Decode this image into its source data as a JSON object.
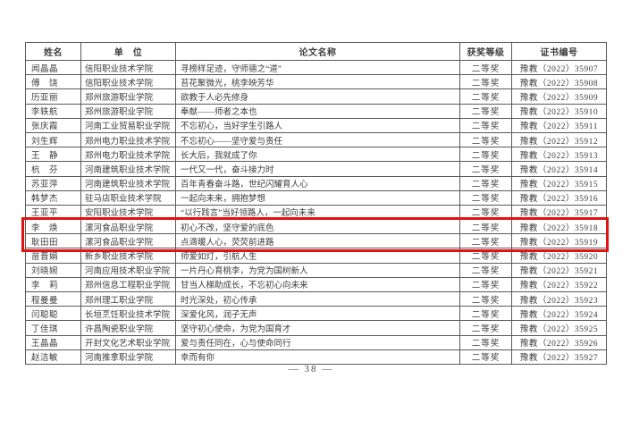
{
  "page": {
    "footer_page_number": "— 38 —"
  },
  "colors": {
    "highlight_border": "#e01212",
    "text": "#3d3d3d",
    "table_border": "#5a5a5a",
    "background": "#ffffff"
  },
  "table": {
    "columns": [
      {
        "key": "name",
        "label": "姓名"
      },
      {
        "key": "unit",
        "label": "单　位"
      },
      {
        "key": "title",
        "label": "论文名称"
      },
      {
        "key": "award",
        "label": "获奖等级"
      },
      {
        "key": "cert",
        "label": "证书编号"
      }
    ],
    "rows": [
      {
        "name": "闻晶晶",
        "unit": "信阳职业技术学院",
        "title": "寻榜样足迹，守师德之“道”",
        "award": "二等奖",
        "cert": "豫教（2022）35907",
        "highlighted": false
      },
      {
        "name": "傅　饶",
        "unit": "信阳职业技术学院",
        "title": "苔花聚微光，桃李映芳华",
        "award": "二等奖",
        "cert": "豫教（2022）35908",
        "highlighted": false
      },
      {
        "name": "历亚丽",
        "unit": "郑州旅游职业学院",
        "title": "欲教于人必先修身",
        "award": "二等奖",
        "cert": "豫教（2022）35909",
        "highlighted": false
      },
      {
        "name": "李轶航",
        "unit": "郑州旅游职业学院",
        "title": "奉献——师者之本也",
        "award": "二等奖",
        "cert": "豫教（2022）35910",
        "highlighted": false
      },
      {
        "name": "张庆霞",
        "unit": "河南工业贸易职业学院",
        "title": "不忘初心，当好学生引路人",
        "award": "二等奖",
        "cert": "豫教（2022）35911",
        "highlighted": false
      },
      {
        "name": "刘生辉",
        "unit": "郑州电力职业技术学院",
        "title": "不忘初心——坚守爱与责任",
        "award": "二等奖",
        "cert": "豫教（2022）35912",
        "highlighted": false
      },
      {
        "name": "王　静",
        "unit": "郑州电力职业技术学院",
        "title": "长大后，我就成了你",
        "award": "二等奖",
        "cert": "豫教（2022）35913",
        "highlighted": false
      },
      {
        "name": "杭　芬",
        "unit": "河南建筑职业技术学院",
        "title": "一代又一代，奋斗接力时",
        "award": "二等奖",
        "cert": "豫教（2022）35914",
        "highlighted": false
      },
      {
        "name": "苏亚萍",
        "unit": "河南建筑职业技术学院",
        "title": "百年青春奋斗路，世纪闪耀育人心",
        "award": "二等奖",
        "cert": "豫教（2022）35915",
        "highlighted": false
      },
      {
        "name": "韩梦杰",
        "unit": "驻马店职业技术学院",
        "title": "一起向未来，拥抱梦想",
        "award": "二等奖",
        "cert": "豫教（2022）35916",
        "highlighted": false
      },
      {
        "name": "王亚平",
        "unit": "安阳职业技术学院",
        "title": "“以行践言”当好领路人，一起向未来",
        "award": "二等奖",
        "cert": "豫教（2022）35917",
        "highlighted": false
      },
      {
        "name": "李　焕",
        "unit": "漯河食品职业学院",
        "title": "初心不改，坚守爱的底色",
        "award": "二等奖",
        "cert": "豫教（2022）35918",
        "highlighted": true
      },
      {
        "name": "耿田田",
        "unit": "漯河食品职业学院",
        "title": "点滴暖人心，荧荧前进路",
        "award": "二等奖",
        "cert": "豫教（2022）35919",
        "highlighted": true
      },
      {
        "name": "苗晋娟",
        "unit": "新乡职业技术学院",
        "title": "师爱如灯，引航人生",
        "award": "二等奖",
        "cert": "豫教（2022）35920",
        "highlighted": false
      },
      {
        "name": "刘晓婉",
        "unit": "河南应用技术职业学院",
        "title": "一片丹心育桃李，为党为国树新人",
        "award": "二等奖",
        "cert": "豫教（2022）35921",
        "highlighted": false
      },
      {
        "name": "李　莉",
        "unit": "郑州信息工程职业学院",
        "title": "甘当人梯助成长，不忘初心向未来",
        "award": "二等奖",
        "cert": "豫教（2022）35922",
        "highlighted": false
      },
      {
        "name": "程曼曼",
        "unit": "郑州理工职业学院",
        "title": "时光深处，初心传承",
        "award": "二等奖",
        "cert": "豫教（2022）35923",
        "highlighted": false
      },
      {
        "name": "闫聪聪",
        "unit": "长垣烹饪职业技术学院",
        "title": "深爱化风，润子无声",
        "award": "二等奖",
        "cert": "豫教（2022）35924",
        "highlighted": false
      },
      {
        "name": "丁佳琪",
        "unit": "许昌陶瓷职业学院",
        "title": "坚守初心使命，为党为国育才",
        "award": "二等奖",
        "cert": "豫教（2022）35925",
        "highlighted": false
      },
      {
        "name": "王晶晶",
        "unit": "开封文化艺术职业学院",
        "title": "爱与责任同在，心与使命同行",
        "award": "二等奖",
        "cert": "豫教（2022）35926",
        "highlighted": false
      },
      {
        "name": "赵洁敏",
        "unit": "河南推拿职业学院",
        "title": "幸而有你",
        "award": "二等奖",
        "cert": "豫教（2022）35927",
        "highlighted": false
      }
    ]
  }
}
